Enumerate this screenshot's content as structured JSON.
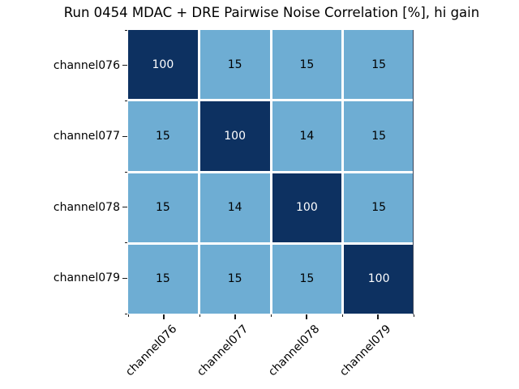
{
  "title": "Run 0454 MDAC + DRE Pairwise Noise Correlation [%], hi gain",
  "chart_data": {
    "type": "heatmap",
    "title": "Run 0454 MDAC + DRE Pairwise Noise Correlation [%], hi gain",
    "x_labels": [
      "channel076",
      "channel077",
      "channel078",
      "channel079"
    ],
    "y_labels": [
      "channel076",
      "channel077",
      "channel078",
      "channel079"
    ],
    "values": [
      [
        100,
        15,
        15,
        15
      ],
      [
        15,
        100,
        14,
        15
      ],
      [
        15,
        14,
        100,
        15
      ],
      [
        15,
        15,
        15,
        100
      ]
    ],
    "value_unit": "%",
    "value_range": [
      0,
      100
    ],
    "annotations_shown": true,
    "x_tick_rotation_deg": 45,
    "legend": "none",
    "colors": {
      "cell_high": "#0d3161",
      "cell_low": "#6eadd3",
      "text_on_high": "#ffffff",
      "text_on_low": "#000000",
      "grid_line": "#ffffff",
      "background": "#ffffff"
    }
  }
}
